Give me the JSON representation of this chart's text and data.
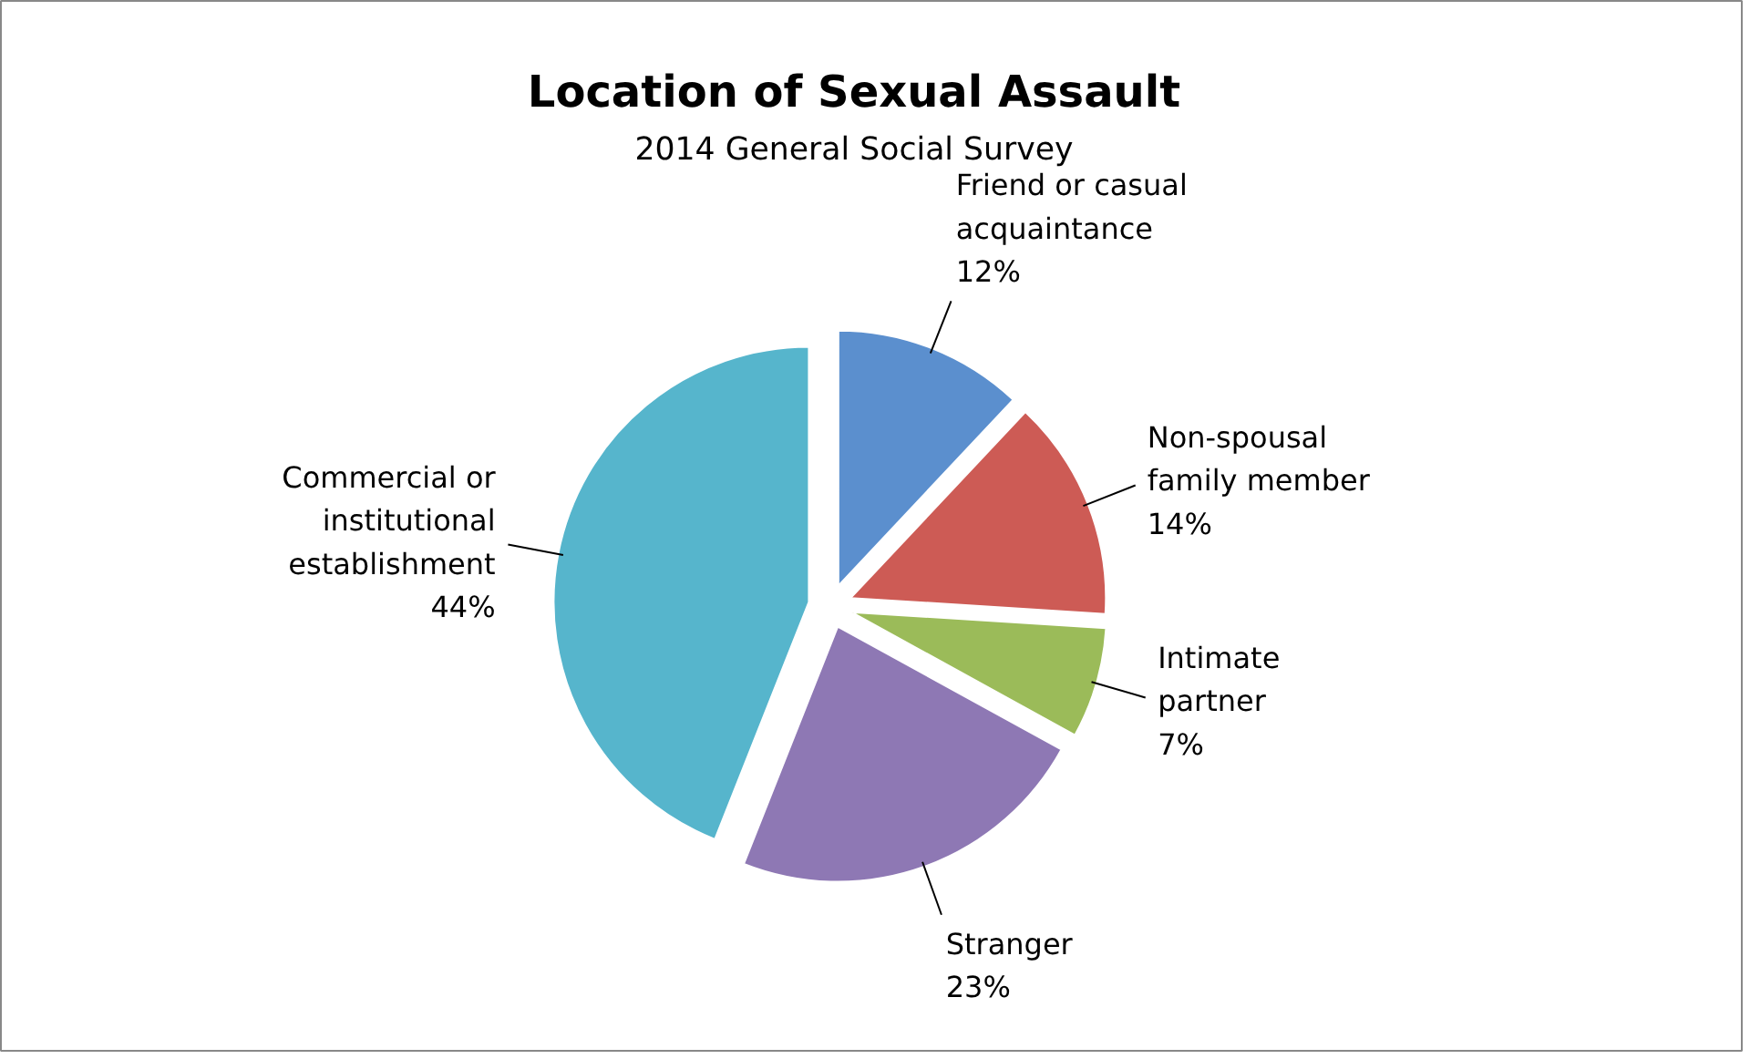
{
  "chart_data": {
    "type": "pie",
    "title": "Location of Sexual Assault",
    "subtitle": "2014 General Social Survey",
    "categories": [
      "Friend or casual\nacquaintance",
      "Non-spousal\nfamily member",
      "Intimate\npartner",
      "Stranger",
      "Commercial or\ninstitutional\nestablishment"
    ],
    "values": [
      12,
      14,
      7,
      23,
      44
    ],
    "value_labels": [
      "12%",
      "14%",
      "7%",
      "23%",
      "44%"
    ],
    "colors": [
      "#5b8fce",
      "#cd5b55",
      "#9bbb59",
      "#8e78b4",
      "#56b5cc"
    ]
  }
}
